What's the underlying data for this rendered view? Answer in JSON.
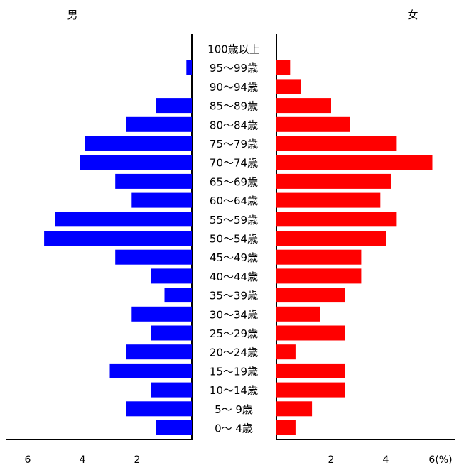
{
  "chart_data": {
    "type": "bar",
    "orientation": "horizontal-pyramid",
    "left_label": "男",
    "right_label": "女",
    "categories": [
      "0～ 4歳",
      "5～ 9歳",
      "10～14歳",
      "15～19歳",
      "20～24歳",
      "25～29歳",
      "30～34歳",
      "35～39歳",
      "40～44歳",
      "45～49歳",
      "50～54歳",
      "55～59歳",
      "60～64歳",
      "65～69歳",
      "70～74歳",
      "75～79歳",
      "80～84歳",
      "85～89歳",
      "90～94歳",
      "95～99歳",
      "100歳以上"
    ],
    "series": [
      {
        "name": "男",
        "color": "#0000ff",
        "values": [
          1.3,
          2.4,
          1.5,
          3.0,
          2.4,
          1.5,
          2.2,
          1.0,
          1.5,
          2.8,
          5.4,
          5.0,
          2.2,
          2.8,
          4.1,
          3.9,
          2.4,
          1.3,
          0,
          0.2,
          0
        ]
      },
      {
        "name": "女",
        "color": "#ff0000",
        "values": [
          0.7,
          1.3,
          2.5,
          2.5,
          0.7,
          2.5,
          1.6,
          2.5,
          3.1,
          3.1,
          4.0,
          4.4,
          3.8,
          4.2,
          5.7,
          4.4,
          2.7,
          2.0,
          0.9,
          0.5,
          0
        ]
      }
    ],
    "x_ticks_left": [
      "6",
      "4",
      "2"
    ],
    "x_ticks_right": [
      "2",
      "4",
      "6(%)"
    ],
    "xlim": [
      0,
      6
    ]
  }
}
